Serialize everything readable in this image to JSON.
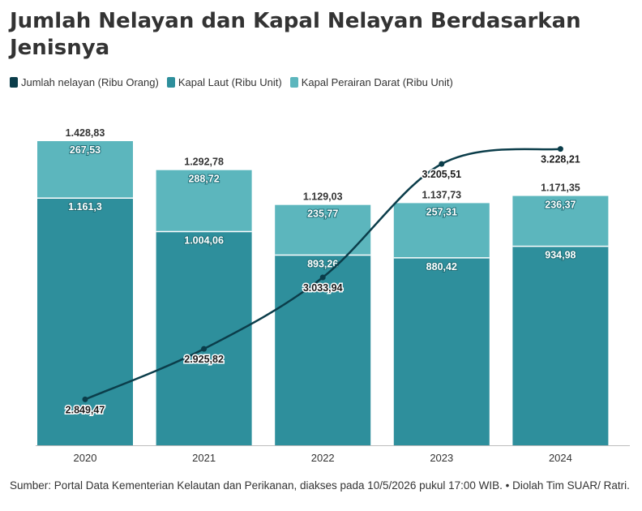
{
  "chart_data": {
    "type": "bar",
    "title": "Jumlah Nelayan dan Kapal Nelayan Berdasarkan Jenisnya",
    "categories": [
      "2020",
      "2021",
      "2022",
      "2023",
      "2024"
    ],
    "series": [
      {
        "name": "Jumlah nelayan (Ribu Orang)",
        "type": "line",
        "values": [
          2849.47,
          2925.82,
          3033.94,
          3205.51,
          3228.21
        ],
        "labels": [
          "2.849,47",
          "2.925,82",
          "3.033,94",
          "3.205,51",
          "3.228,21"
        ],
        "color": "#0b3d4a"
      },
      {
        "name": "Kapal Laut (Ribu Unit)",
        "type": "bar",
        "stack": "kapal",
        "values": [
          1161.3,
          1004.06,
          893.26,
          880.42,
          934.98
        ],
        "labels": [
          "1.161,3",
          "1.004,06",
          "893,26",
          "880,42",
          "934,98"
        ],
        "color": "#2e8f9c"
      },
      {
        "name": "Kapal Perairan Darat (Ribu Unit)",
        "type": "bar",
        "stack": "kapal",
        "values": [
          267.53,
          288.72,
          235.77,
          257.31,
          236.37
        ],
        "labels": [
          "267,53",
          "288,72",
          "235,77",
          "257,31",
          "236,37"
        ],
        "color": "#5cb6bd"
      }
    ],
    "totals": [
      "1.428,83",
      "1.292,78",
      "1.129,03",
      "1.137,73",
      "1.171,35"
    ],
    "bar_ylim": [
      0,
      1428.83
    ],
    "line_ylim": [
      2780,
      3240
    ],
    "grid": false,
    "legend_position": "top-left"
  },
  "footer": {
    "source": "Sumber: Portal Data Kementerian Kelautan dan Perikanan, diakses pada 10/5/2026 pukul 17:00 WIB. • Diolah Tim SUAR/ Ratri."
  }
}
